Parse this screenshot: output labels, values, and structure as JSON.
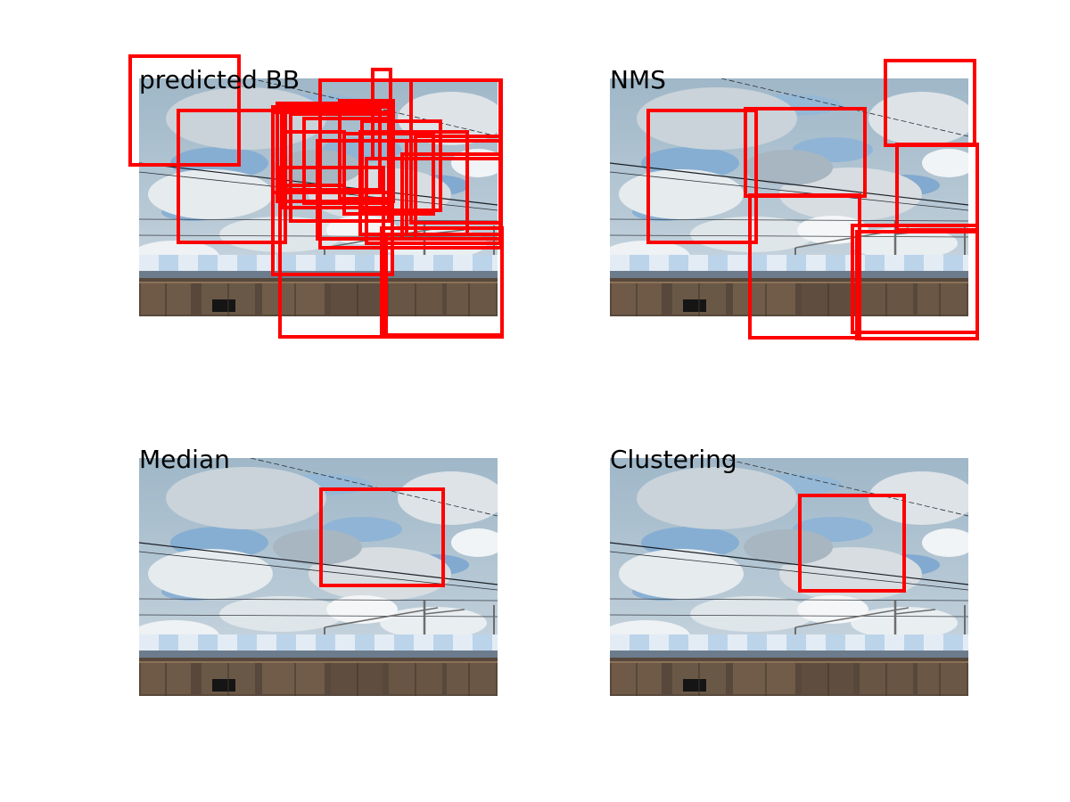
{
  "colors": {
    "box_color": "#ff0000"
  },
  "panels": [
    {
      "title": "predicted BB"
    },
    {
      "title": "NMS"
    },
    {
      "title": "Median"
    },
    {
      "title": "Clustering"
    }
  ]
}
